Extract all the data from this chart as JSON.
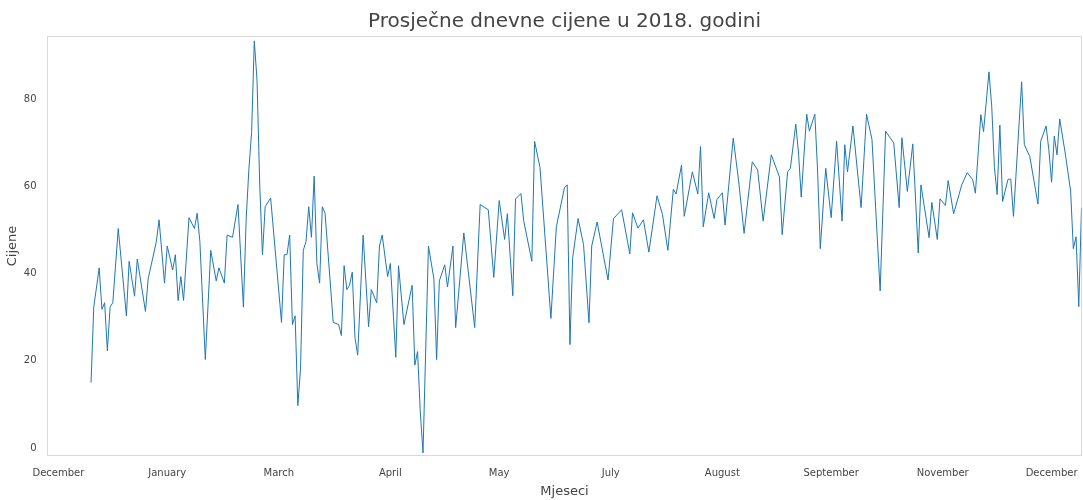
{
  "chart_data": {
    "type": "line",
    "title": "Prosječne dnevne cijene u 2018. godini",
    "xlabel": "Mjeseci",
    "ylabel": "Cijene",
    "x": [
      "2018-01-01",
      "2018-01-02",
      "2018-01-04",
      "2018-01-05",
      "2018-01-06",
      "2018-01-07",
      "2018-01-08",
      "2018-01-09",
      "2018-01-11",
      "2018-01-14",
      "2018-01-15",
      "2018-01-17",
      "2018-01-18",
      "2018-01-21",
      "2018-01-22",
      "2018-01-25",
      "2018-01-26",
      "2018-01-28",
      "2018-01-29",
      "2018-01-31",
      "2018-02-01",
      "2018-02-02",
      "2018-02-03",
      "2018-02-04",
      "2018-02-06",
      "2018-02-08",
      "2018-02-09",
      "2018-02-10",
      "2018-02-12",
      "2018-02-14",
      "2018-02-16",
      "2018-02-17",
      "2018-02-19",
      "2018-02-20",
      "2018-02-22",
      "2018-02-24",
      "2018-02-26",
      "2018-02-27",
      "2018-02-28",
      "2018-03-01",
      "2018-03-02",
      "2018-03-03",
      "2018-03-04",
      "2018-03-05",
      "2018-03-06",
      "2018-03-08",
      "2018-03-12",
      "2018-03-13",
      "2018-03-14",
      "2018-03-15",
      "2018-03-16",
      "2018-03-17",
      "2018-03-18",
      "2018-03-19",
      "2018-03-20",
      "2018-03-21",
      "2018-03-22",
      "2018-03-23",
      "2018-03-24",
      "2018-03-25",
      "2018-03-26",
      "2018-03-27",
      "2018-03-28",
      "2018-03-31",
      "2018-04-02",
      "2018-04-03",
      "2018-04-04",
      "2018-04-05",
      "2018-04-06",
      "2018-04-07",
      "2018-04-08",
      "2018-04-09",
      "2018-04-11",
      "2018-04-13",
      "2018-04-14",
      "2018-04-16",
      "2018-04-17",
      "2018-04-18",
      "2018-04-20",
      "2018-04-21",
      "2018-04-23",
      "2018-04-24",
      "2018-04-26",
      "2018-04-29",
      "2018-04-30",
      "2018-05-01",
      "2018-05-02",
      "2018-05-03",
      "2018-05-05",
      "2018-05-07",
      "2018-05-08",
      "2018-05-09",
      "2018-05-11",
      "2018-05-12",
      "2018-05-14",
      "2018-05-15",
      "2018-05-18",
      "2018-05-22",
      "2018-05-24",
      "2018-05-27",
      "2018-05-29",
      "2018-05-31",
      "2018-06-02",
      "2018-06-03",
      "2018-06-05",
      "2018-06-06",
      "2018-06-08",
      "2018-06-09",
      "2018-06-12",
      "2018-06-13",
      "2018-06-15",
      "2018-06-19",
      "2018-06-21",
      "2018-06-24",
      "2018-06-25",
      "2018-06-26",
      "2018-06-27",
      "2018-06-29",
      "2018-07-01",
      "2018-07-03",
      "2018-07-04",
      "2018-07-06",
      "2018-07-10",
      "2018-07-12",
      "2018-07-15",
      "2018-07-18",
      "2018-07-19",
      "2018-07-21",
      "2018-07-23",
      "2018-07-25",
      "2018-07-28",
      "2018-07-30",
      "2018-08-01",
      "2018-08-03",
      "2018-08-04",
      "2018-08-06",
      "2018-08-07",
      "2018-08-10",
      "2018-08-12",
      "2018-08-13",
      "2018-08-14",
      "2018-08-16",
      "2018-08-18",
      "2018-08-19",
      "2018-08-21",
      "2018-08-22",
      "2018-08-25",
      "2018-08-27",
      "2018-08-29",
      "2018-09-01",
      "2018-09-03",
      "2018-09-05",
      "2018-09-08",
      "2018-09-11",
      "2018-09-12",
      "2018-09-14",
      "2018-09-15",
      "2018-09-17",
      "2018-09-18",
      "2018-09-19",
      "2018-09-21",
      "2018-09-22",
      "2018-09-24",
      "2018-09-25",
      "2018-09-26",
      "2018-09-28",
      "2018-09-30",
      "2018-10-02",
      "2018-10-04",
      "2018-10-05",
      "2018-10-06",
      "2018-10-08",
      "2018-10-11",
      "2018-10-13",
      "2018-10-15",
      "2018-10-18",
      "2018-10-20",
      "2018-10-23",
      "2018-10-25",
      "2018-10-26",
      "2018-10-28",
      "2018-10-30",
      "2018-11-01",
      "2018-11-02",
      "2018-11-05",
      "2018-11-06",
      "2018-11-08",
      "2018-11-09",
      "2018-11-11",
      "2018-11-12",
      "2018-11-14",
      "2018-11-17",
      "2018-11-19",
      "2018-11-21",
      "2018-11-22",
      "2018-11-24",
      "2018-11-25",
      "2018-11-27",
      "2018-11-28",
      "2018-11-29",
      "2018-11-30",
      "2018-12-01",
      "2018-12-02",
      "2018-12-04",
      "2018-12-05",
      "2018-12-06",
      "2018-12-09",
      "2018-12-10",
      "2018-12-12",
      "2018-12-15",
      "2018-12-16",
      "2018-12-18",
      "2018-12-19",
      "2018-12-20",
      "2018-12-21",
      "2018-12-22",
      "2018-12-23",
      "2018-12-25",
      "2018-12-27",
      "2018-12-28",
      "2018-12-29",
      "2018-12-30",
      "2018-12-31"
    ],
    "series": [
      {
        "color": "#1f77b4",
        "values": [
          14.7,
          32,
          41,
          31.5,
          33,
          22,
          32,
          33,
          50,
          30,
          42.5,
          34.5,
          43,
          31,
          38.5,
          47,
          52,
          37.5,
          46,
          40.5,
          44,
          33.5,
          39,
          33.5,
          52.5,
          50,
          53.5,
          47,
          20,
          45,
          38,
          41,
          37.5,
          48.5,
          48,
          55.5,
          32,
          52,
          63.5,
          72,
          93,
          84,
          60,
          44,
          55,
          57,
          28.5,
          44,
          44,
          48.5,
          28,
          30,
          9.4,
          18,
          45,
          47,
          55,
          48,
          62,
          42,
          37.5,
          55,
          53.5,
          28.5,
          28,
          25.5,
          41.5,
          36,
          37,
          40,
          25,
          21,
          48.5,
          27.5,
          36,
          33,
          46,
          48.5,
          39,
          42,
          20.5,
          41.5,
          28,
          37,
          18.7,
          21.8,
          8,
          -1.4,
          46,
          38.5,
          20,
          38,
          41.7,
          36.6,
          46,
          27.3,
          49,
          27.3,
          55.5,
          54.3,
          38.8,
          56.4,
          47.5,
          53.4,
          34.6,
          56.8,
          58,
          51.8,
          42.5,
          70,
          64,
          29.4,
          50.4,
          59.4,
          60,
          23.4,
          43.3,
          52.3,
          46.3,
          28.4,
          46,
          51.5,
          38.2,
          52.3,
          54.3,
          44.2,
          53.6,
          50.1,
          52,
          44.6,
          57.5,
          53.2,
          45,
          59,
          57.9,
          64.5,
          52.8,
          63,
          57.9,
          68.8,
          50.4,
          58.2,
          52.3,
          56.6,
          58.2,
          50.8,
          70.7,
          60.9,
          48.9,
          65.3,
          63.4,
          51.7,
          66.9,
          61.8,
          48.6,
          63,
          63.8,
          73.9,
          67.3,
          57.2,
          76.2,
          72.3,
          76.2,
          63.4,
          45.4,
          63.8,
          52.5,
          70,
          51.7,
          69.2,
          63,
          73.5,
          54.8,
          76.2,
          70.4,
          35.7,
          72.3,
          69.6,
          54.8,
          70.8,
          58.5,
          69.4,
          44.4,
          60,
          47.9,
          56,
          47.5,
          56.8,
          55.3,
          61,
          53.4,
          60,
          62.8,
          61.2,
          58.1,
          76.1,
          72.2,
          85.9,
          78.1,
          64,
          57.8,
          73.7,
          56.2,
          61.3,
          61.3,
          52.8,
          83.6,
          69.2,
          66.5,
          55.6,
          70,
          73.5,
          68,
          60.6,
          71.2,
          66.9,
          75.1,
          67.3,
          58.6,
          45.4,
          48.1,
          32.1,
          54.8
        ]
      }
    ],
    "xticks": [
      {
        "value": "2017-12-20",
        "label": "December"
      },
      {
        "value": "2018-01-29",
        "label": "January"
      },
      {
        "value": "2018-03-11",
        "label": "March"
      },
      {
        "value": "2018-04-21",
        "label": "April"
      },
      {
        "value": "2018-05-31",
        "label": "May"
      },
      {
        "value": "2018-07-11",
        "label": "July"
      },
      {
        "value": "2018-08-21",
        "label": "August"
      },
      {
        "value": "2018-09-30",
        "label": "September"
      },
      {
        "value": "2018-11-10",
        "label": "November"
      },
      {
        "value": "2018-12-20",
        "label": "December"
      }
    ],
    "xlim": [
      "2017-12-16",
      "2018-12-31"
    ],
    "ylim": [
      -2,
      94
    ],
    "yticks": [
      0,
      20,
      40,
      60,
      80
    ]
  }
}
